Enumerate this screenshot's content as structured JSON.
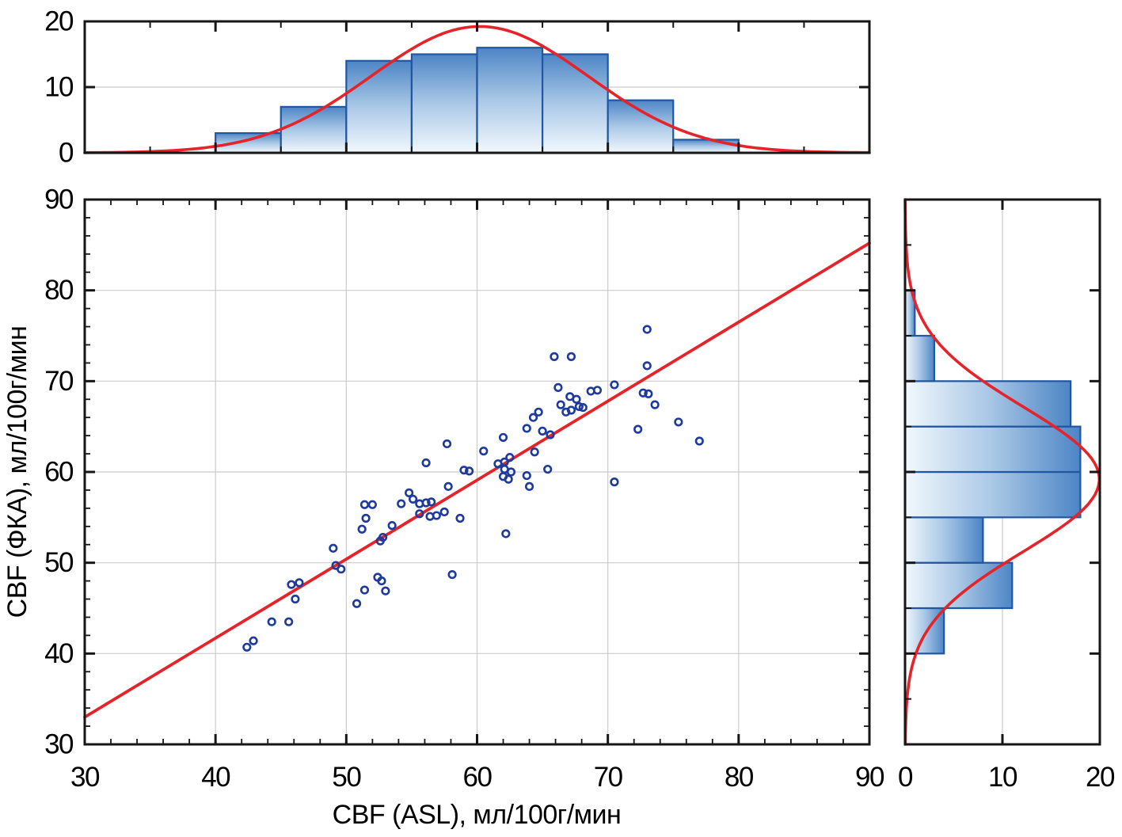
{
  "chart_data": {
    "type": "scatter",
    "n_points": 80,
    "main": {
      "xlabel": "CBF (ASL), мл/100г/мин",
      "ylabel": "CBF (ФКА), мл/100г/мин",
      "xlim": [
        30,
        90
      ],
      "ylim": [
        30,
        90
      ],
      "xticks": [
        30,
        40,
        50,
        60,
        70,
        80,
        90
      ],
      "yticks": [
        30,
        40,
        50,
        60,
        70,
        80,
        90
      ],
      "minor_tick_step": 2,
      "grid": true,
      "regression_line": {
        "x1": 30,
        "y1": 33.0,
        "x2": 90,
        "y2": 85.2
      },
      "points": [
        [
          42.4,
          40.7
        ],
        [
          42.9,
          41.4
        ],
        [
          44.3,
          43.5
        ],
        [
          45.6,
          43.5
        ],
        [
          46.1,
          46.0
        ],
        [
          45.8,
          47.6
        ],
        [
          46.4,
          47.8
        ],
        [
          49.2,
          49.7
        ],
        [
          49.6,
          49.3
        ],
        [
          49.0,
          51.6
        ],
        [
          50.8,
          45.5
        ],
        [
          51.4,
          47.0
        ],
        [
          52.4,
          48.4
        ],
        [
          52.7,
          48.0
        ],
        [
          53.0,
          46.9
        ],
        [
          51.2,
          53.7
        ],
        [
          51.5,
          54.9
        ],
        [
          51.4,
          56.4
        ],
        [
          52.0,
          56.4
        ],
        [
          52.6,
          52.4
        ],
        [
          52.8,
          52.8
        ],
        [
          53.5,
          54.1
        ],
        [
          54.2,
          56.5
        ],
        [
          54.8,
          57.7
        ],
        [
          55.1,
          57.0
        ],
        [
          55.6,
          56.5
        ],
        [
          56.1,
          56.6
        ],
        [
          56.5,
          56.7
        ],
        [
          55.6,
          55.4
        ],
        [
          56.4,
          55.1
        ],
        [
          56.9,
          55.2
        ],
        [
          57.5,
          55.6
        ],
        [
          58.7,
          54.9
        ],
        [
          57.8,
          58.4
        ],
        [
          58.1,
          48.7
        ],
        [
          56.1,
          61.0
        ],
        [
          57.7,
          63.1
        ],
        [
          59.0,
          60.2
        ],
        [
          59.4,
          60.1
        ],
        [
          60.5,
          62.3
        ],
        [
          61.6,
          60.9
        ],
        [
          62.1,
          61.1
        ],
        [
          62.5,
          61.6
        ],
        [
          62.1,
          60.3
        ],
        [
          62.6,
          60.0
        ],
        [
          62.0,
          59.5
        ],
        [
          62.4,
          59.2
        ],
        [
          62.0,
          63.8
        ],
        [
          62.2,
          53.2
        ],
        [
          63.8,
          59.6
        ],
        [
          64.0,
          58.4
        ],
        [
          64.4,
          62.2
        ],
        [
          65.4,
          60.3
        ],
        [
          63.8,
          64.8
        ],
        [
          64.3,
          66.0
        ],
        [
          64.7,
          66.6
        ],
        [
          65.0,
          64.5
        ],
        [
          65.6,
          64.1
        ],
        [
          65.9,
          72.7
        ],
        [
          67.2,
          72.7
        ],
        [
          66.2,
          69.3
        ],
        [
          66.4,
          67.4
        ],
        [
          66.8,
          66.6
        ],
        [
          67.2,
          66.8
        ],
        [
          67.1,
          68.3
        ],
        [
          67.6,
          68.0
        ],
        [
          67.8,
          67.2
        ],
        [
          68.1,
          67.1
        ],
        [
          68.7,
          68.9
        ],
        [
          69.2,
          69.0
        ],
        [
          70.5,
          69.6
        ],
        [
          70.5,
          58.9
        ],
        [
          72.3,
          64.7
        ],
        [
          72.7,
          68.7
        ],
        [
          73.1,
          68.6
        ],
        [
          73.6,
          67.4
        ],
        [
          73.0,
          71.7
        ],
        [
          73.0,
          75.7
        ],
        [
          75.4,
          65.5
        ],
        [
          77.0,
          63.4
        ]
      ]
    },
    "top_histogram": {
      "variable": "CBF (ASL)",
      "bin_start": 40,
      "bin_width": 5,
      "counts": [
        3,
        7,
        14,
        15,
        16,
        15,
        8,
        2
      ],
      "axis_lim": [
        0,
        20
      ],
      "axis_ticks": [
        0,
        10,
        20
      ],
      "normal_curve": {
        "mean": 60.2,
        "sd": 8.3
      }
    },
    "right_histogram": {
      "variable": "CBF (ФКА)",
      "bin_start": 40,
      "bin_width": 5,
      "counts": [
        4,
        11,
        8,
        18,
        18,
        17,
        3,
        1
      ],
      "axis_lim": [
        0,
        20
      ],
      "axis_ticks": [
        0,
        10,
        20
      ],
      "normal_curve": {
        "mean": 59.2,
        "sd": 8.0
      }
    },
    "colors": {
      "background": "#ffffff",
      "frame": "#161616",
      "grid": "#cccccc",
      "red_line": "#e62329",
      "point_stroke": "#1e3a9c",
      "bar_stroke": "#2156a3",
      "bar_fill_tip": "#4d85c5",
      "bar_fill_mid": "#aac8e6",
      "bar_fill_base": "#f2f8fd",
      "text": "#000000"
    }
  }
}
